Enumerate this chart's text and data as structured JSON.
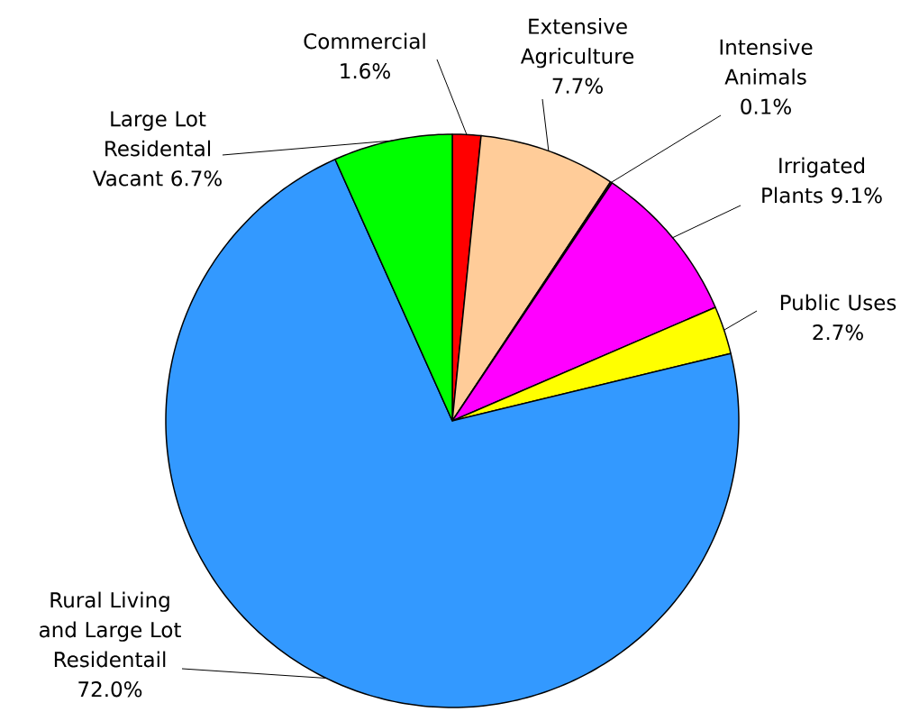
{
  "chart_data": {
    "type": "pie",
    "categories": [
      "Commercial",
      "Extensive Agriculture",
      "Intensive Animals",
      "Irrigated Plants",
      "Public Uses",
      "Rural Living and Large Lot Residentail",
      "Large Lot Residental Vacant"
    ],
    "values": [
      1.6,
      7.7,
      0.1,
      9.1,
      2.7,
      72.0,
      6.7
    ],
    "colors": [
      "#ff0000",
      "#ffcc99",
      "#333333",
      "#ff00ff",
      "#ffff00",
      "#3399ff",
      "#00ff00"
    ],
    "value_labels": [
      "1.6%",
      "7.7%",
      "0.1%",
      "9.1%",
      "2.7%",
      "72.0%",
      "6.7%"
    ]
  }
}
